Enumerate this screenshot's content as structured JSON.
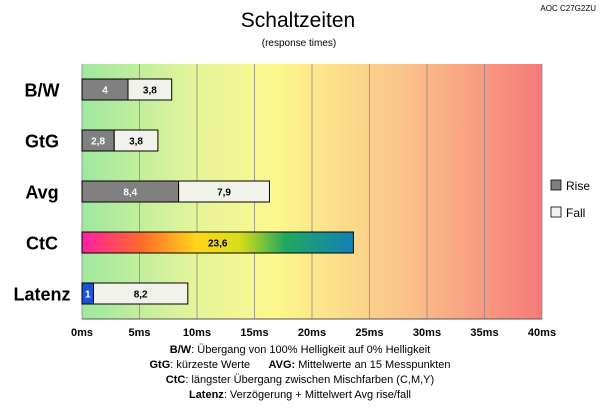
{
  "monitor_label": "AOC C27G2ZU",
  "chart_data": {
    "type": "bar",
    "orientation": "horizontal",
    "stacked": true,
    "title": "Schaltzeiten",
    "subtitle": "(response times)",
    "categories": [
      "B/W",
      "GtG",
      "Avg",
      "CtC",
      "Latenz"
    ],
    "series": [
      {
        "name": "Rise",
        "values": [
          4,
          2.8,
          8.4,
          23.6,
          1
        ],
        "color": "#808080"
      },
      {
        "name": "Fall",
        "values": [
          3.8,
          3.8,
          7.9,
          null,
          8.2
        ],
        "color": "#f2f2ec"
      }
    ],
    "special_bars": {
      "CtC": "gradient",
      "Latenz_first_segment_color": "#1a55d6"
    },
    "xlim": [
      0,
      40
    ],
    "xticks": [
      "0ms",
      "5ms",
      "10ms",
      "15ms",
      "20ms",
      "25ms",
      "30ms",
      "35ms",
      "40ms"
    ],
    "grid": true,
    "background": "green-yellow-red gradient",
    "legend_position": "right"
  },
  "footnotes": {
    "bw_key": "B/W",
    "bw_text": ":  Übergang von 100% Helligkeit auf 0% Helligkeit",
    "gtg_key": "GtG",
    "gtg_text": ": kürzeste  Werte",
    "avg_key": "AVG:",
    "avg_text": " Mittelwerte  an 15 Messpunkten",
    "ctc_key": "CtC",
    "ctc_text": ": längster Übergang  zwischen Mischfarben (C,M,Y)",
    "latenz_key": "Latenz",
    "latenz_text": ": Verzögerung  + Mittelwert Avg rise/fall"
  }
}
